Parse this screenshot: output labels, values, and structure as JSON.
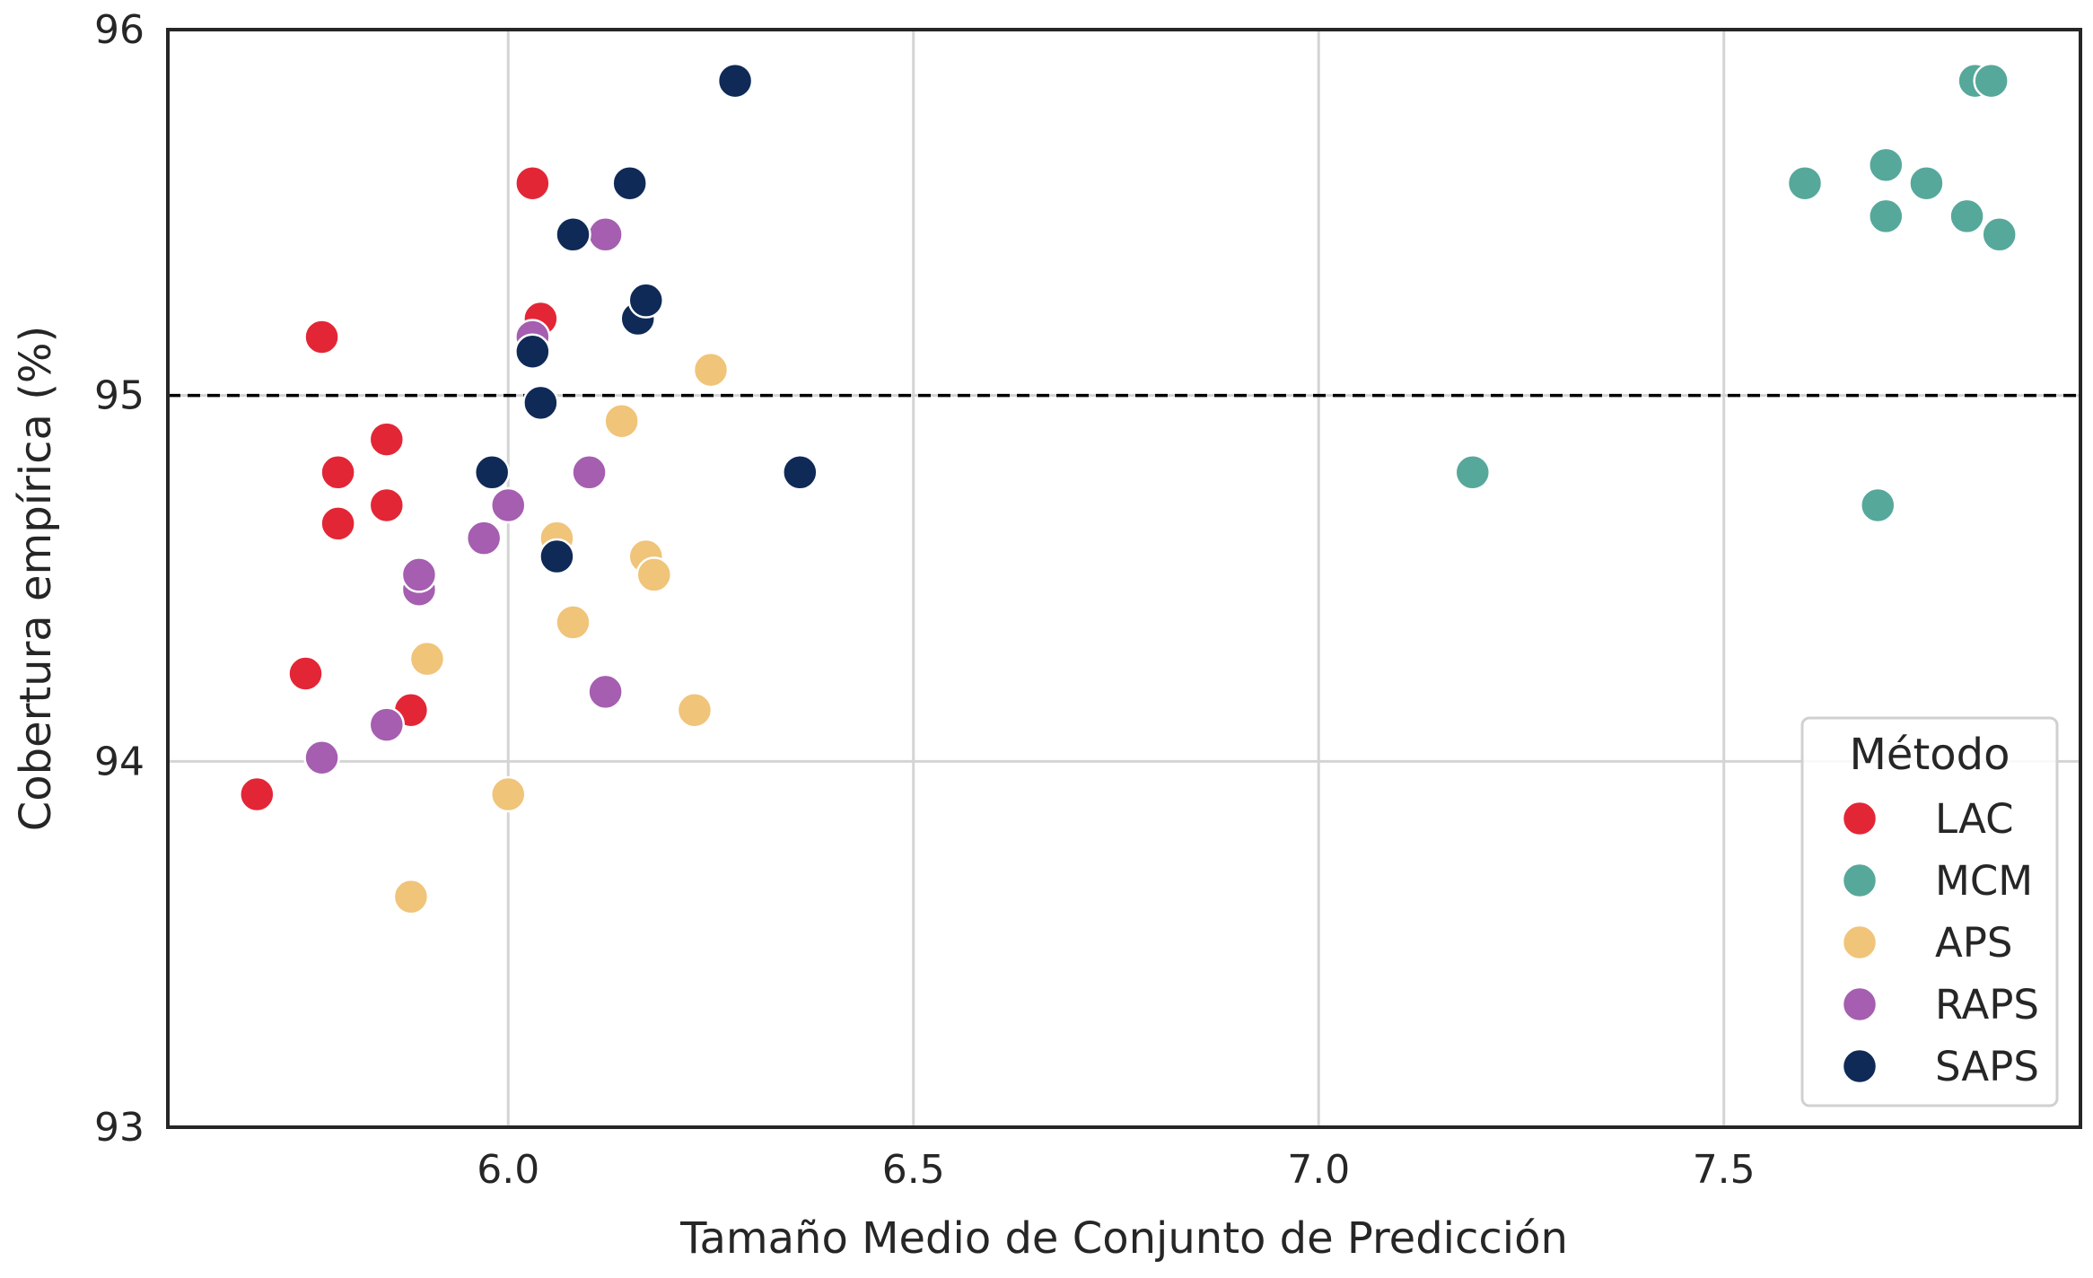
{
  "chart_data": {
    "type": "scatter",
    "title": "",
    "xlabel": "Tamaño Medio de Conjunto de Predicción",
    "ylabel": "Cobertura empírica (%)",
    "xlim": [
      5.58,
      7.94
    ],
    "ylim": [
      93.0,
      96.0
    ],
    "xticks": [
      6.0,
      6.5,
      7.0,
      7.5
    ],
    "yticks": [
      93,
      94,
      95,
      96
    ],
    "xtick_labels": [
      "6.0",
      "6.5",
      "7.0",
      "7.5"
    ],
    "ytick_labels": [
      "93",
      "94",
      "95",
      "96"
    ],
    "grid": true,
    "reference_line": {
      "y": 95.0,
      "style": "dashed",
      "color": "#000000"
    },
    "legend": {
      "title": "Método",
      "position": "lower-right"
    },
    "series": [
      {
        "name": "LAC",
        "color": "#e32636",
        "points": [
          {
            "x": 5.69,
            "y": 93.91
          },
          {
            "x": 5.75,
            "y": 94.24
          },
          {
            "x": 5.77,
            "y": 95.16
          },
          {
            "x": 5.79,
            "y": 94.79
          },
          {
            "x": 5.79,
            "y": 94.65
          },
          {
            "x": 5.85,
            "y": 94.88
          },
          {
            "x": 5.85,
            "y": 94.7
          },
          {
            "x": 5.88,
            "y": 94.14
          },
          {
            "x": 6.03,
            "y": 95.58
          },
          {
            "x": 6.04,
            "y": 95.21
          }
        ]
      },
      {
        "name": "MCM",
        "color": "#56a89a",
        "points": [
          {
            "x": 7.19,
            "y": 94.79
          },
          {
            "x": 7.6,
            "y": 95.58
          },
          {
            "x": 7.69,
            "y": 94.7
          },
          {
            "x": 7.7,
            "y": 95.63
          },
          {
            "x": 7.7,
            "y": 95.49
          },
          {
            "x": 7.75,
            "y": 95.58
          },
          {
            "x": 7.8,
            "y": 95.49
          },
          {
            "x": 7.81,
            "y": 95.86
          },
          {
            "x": 7.83,
            "y": 95.86
          },
          {
            "x": 7.84,
            "y": 95.44
          }
        ]
      },
      {
        "name": "APS",
        "color": "#f0c479",
        "points": [
          {
            "x": 5.88,
            "y": 93.63
          },
          {
            "x": 5.9,
            "y": 94.28
          },
          {
            "x": 6.0,
            "y": 93.91
          },
          {
            "x": 6.06,
            "y": 94.61
          },
          {
            "x": 6.08,
            "y": 94.38
          },
          {
            "x": 6.14,
            "y": 94.93
          },
          {
            "x": 6.17,
            "y": 94.56
          },
          {
            "x": 6.18,
            "y": 94.51
          },
          {
            "x": 6.23,
            "y": 94.14
          },
          {
            "x": 6.25,
            "y": 95.07
          }
        ]
      },
      {
        "name": "RAPS",
        "color": "#a55eb0",
        "points": [
          {
            "x": 5.77,
            "y": 94.01
          },
          {
            "x": 5.85,
            "y": 94.1
          },
          {
            "x": 5.89,
            "y": 94.47
          },
          {
            "x": 5.89,
            "y": 94.51
          },
          {
            "x": 5.97,
            "y": 94.61
          },
          {
            "x": 6.0,
            "y": 94.7
          },
          {
            "x": 6.03,
            "y": 95.16
          },
          {
            "x": 6.1,
            "y": 94.79
          },
          {
            "x": 6.12,
            "y": 95.44
          },
          {
            "x": 6.12,
            "y": 94.19
          }
        ]
      },
      {
        "name": "SAPS",
        "color": "#0f2a57",
        "points": [
          {
            "x": 5.98,
            "y": 94.79
          },
          {
            "x": 6.03,
            "y": 95.12
          },
          {
            "x": 6.04,
            "y": 94.98
          },
          {
            "x": 6.06,
            "y": 94.56
          },
          {
            "x": 6.08,
            "y": 95.44
          },
          {
            "x": 6.15,
            "y": 95.58
          },
          {
            "x": 6.16,
            "y": 95.21
          },
          {
            "x": 6.17,
            "y": 95.26
          },
          {
            "x": 6.28,
            "y": 95.86
          },
          {
            "x": 6.36,
            "y": 94.79
          }
        ]
      }
    ]
  }
}
